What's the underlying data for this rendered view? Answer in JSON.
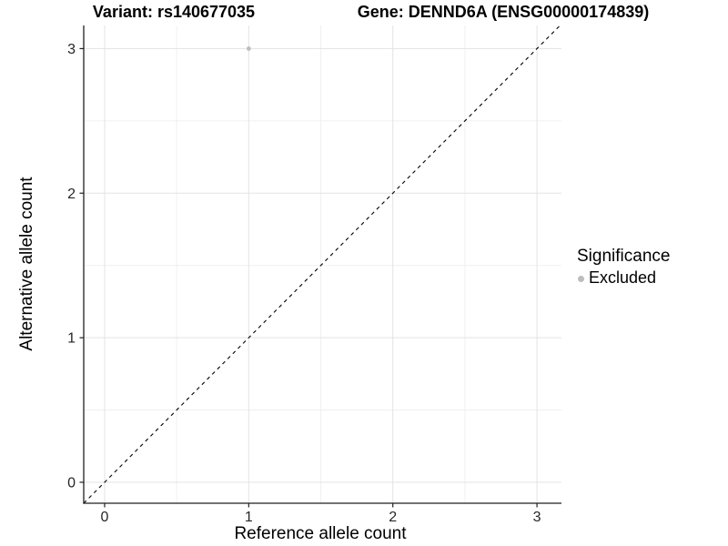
{
  "chart_data": {
    "type": "scatter",
    "title_left": "Variant: rs140677035",
    "title_right": "Gene: DENND6A (ENSG00000174839)",
    "xlabel": "Reference allele count",
    "ylabel": "Alternative allele count",
    "xlim": [
      -0.145,
      3.17
    ],
    "ylim": [
      -0.145,
      3.16
    ],
    "xticks": [
      0,
      1,
      2,
      3
    ],
    "yticks": [
      0,
      1,
      2,
      3
    ],
    "minor_xticks": [
      0.5,
      1.5,
      2.5
    ],
    "minor_yticks": [
      0.5,
      1.5,
      2.5
    ],
    "grid": "major+minor",
    "points": [
      {
        "x": 1,
        "y": 3,
        "series": "Excluded"
      }
    ],
    "reference_line": {
      "type": "identity",
      "intercept": 0,
      "slope": 1,
      "style": "dashed"
    },
    "legend": {
      "title": "Significance",
      "position": "right",
      "entries": [
        {
          "label": "Excluded",
          "color": "#bdbdbd",
          "marker": "circle"
        }
      ]
    },
    "colors": {
      "background": "#ffffff",
      "point": "#bdbdbd",
      "grid_major": "#e3e3e3",
      "grid_minor": "#f0f0f0",
      "axis": "#1f1f1f",
      "tick_label": "#262626",
      "reference_line": "#000000"
    }
  }
}
